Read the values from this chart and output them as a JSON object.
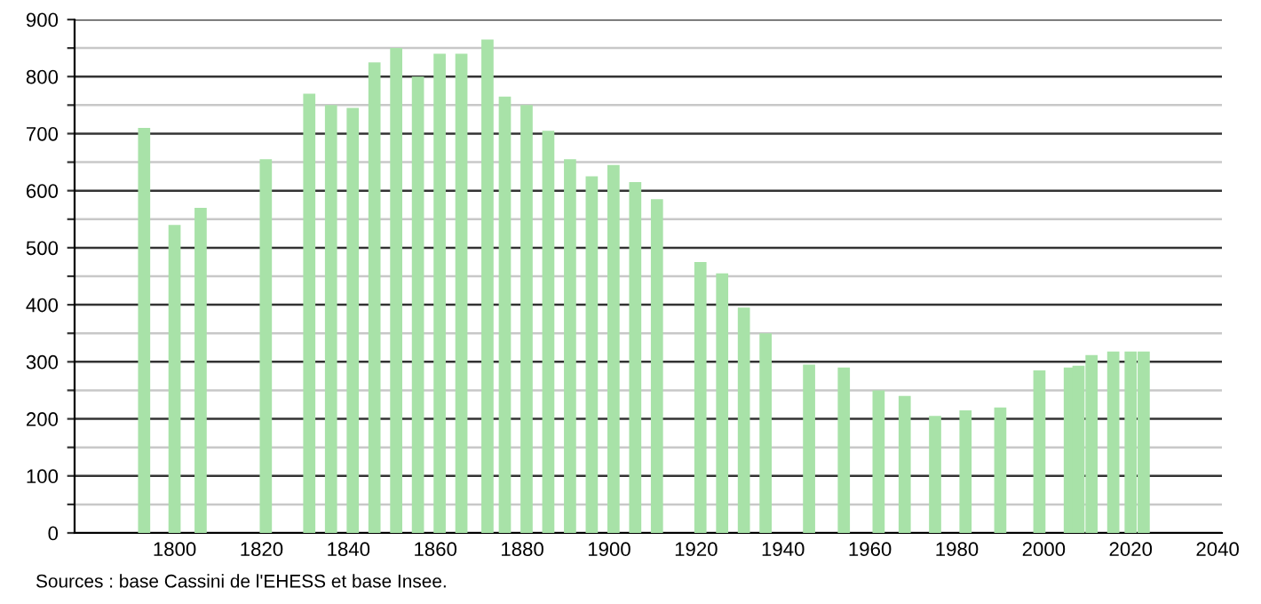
{
  "chart_data": {
    "type": "bar",
    "x": [
      1793,
      1800,
      1806,
      1821,
      1831,
      1836,
      1841,
      1846,
      1851,
      1856,
      1861,
      1866,
      1872,
      1876,
      1881,
      1886,
      1891,
      1896,
      1901,
      1906,
      1911,
      1921,
      1926,
      1931,
      1936,
      1946,
      1954,
      1962,
      1968,
      1975,
      1982,
      1990,
      1999,
      2006,
      2008,
      2011,
      2016,
      2020,
      2023
    ],
    "series": [
      {
        "color": "#a8e2a8",
        "values": [
          710,
          540,
          570,
          655,
          770,
          750,
          745,
          825,
          850,
          800,
          840,
          840,
          865,
          765,
          750,
          705,
          655,
          625,
          645,
          615,
          585,
          475,
          455,
          395,
          350,
          295,
          290,
          250,
          240,
          205,
          215,
          220,
          285,
          290,
          293,
          312,
          318,
          318,
          318
        ]
      }
    ],
    "xlim": [
      1777,
      2041
    ],
    "xticks": [
      1800,
      1820,
      1840,
      1860,
      1880,
      1900,
      1920,
      1940,
      1960,
      1980,
      2000,
      2020,
      2040
    ],
    "ylim": [
      0,
      900
    ],
    "yticks": [
      0,
      {
        "value": 50,
        "label": null
      },
      100,
      {
        "value": 150,
        "label": null
      },
      200,
      {
        "value": 250,
        "label": null
      },
      300,
      {
        "value": 350,
        "label": null
      },
      400,
      {
        "value": 450,
        "label": null
      },
      500,
      {
        "value": 550,
        "label": null
      },
      600,
      {
        "value": 650,
        "label": null
      },
      700,
      {
        "value": 750,
        "label": null
      },
      800,
      {
        "value": 850,
        "label": null
      },
      900
    ],
    "grid": "y",
    "annotations": [
      "Sources : base Cassini de l'EHESS et base Insee."
    ]
  }
}
